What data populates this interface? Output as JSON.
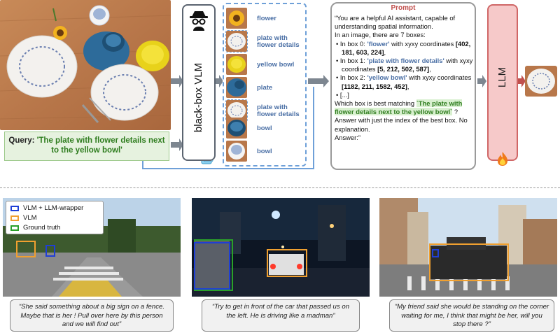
{
  "query": {
    "label": "Query: ",
    "text": "'The plate with flower details next to the yellow bowl'"
  },
  "vlm": {
    "label": "black-box VLM"
  },
  "crops": [
    {
      "label": "flower",
      "thumb": "flower"
    },
    {
      "label": "plate with flower details",
      "thumb": "plate"
    },
    {
      "label": "yellow bowl",
      "thumb": "yellow"
    },
    {
      "label": "plate",
      "thumb": "blueplate"
    },
    {
      "label": "plate with flower details",
      "thumb": "plate2"
    },
    {
      "label": "bowl",
      "thumb": "bowl"
    },
    {
      "label": "bowl",
      "thumb": "mug"
    }
  ],
  "prompt": {
    "title": "Prompt",
    "intro": "“You are a helpful AI assistant, capable of understanding spatial information.",
    "count_line": "In an image, there are 7 boxes:",
    "boxes": [
      {
        "prefix": "In box 0: ",
        "label": "'flower'",
        "mid": " with xyxy coordinates ",
        "coords": "[402, 181, 603, 224]",
        "suffix": ","
      },
      {
        "prefix": "In box 1: ",
        "label": "'plate with flower details'",
        "mid": " with xyxy coordinates ",
        "coords": "[5, 212, 502, 587]",
        "suffix": ","
      },
      {
        "prefix": "In box 2: ",
        "label": "'yellow bowl'",
        "mid": " with xyxy coordinates ",
        "coords": "[1182, 211, 1582, 452]",
        "suffix": ","
      }
    ],
    "ellipsis": "[...]",
    "question_pre": "Which box is best matching ",
    "question_query": "`The plate with flower details next to the yellow bowl`",
    "question_post": " ? Answer with just the index of the best box. No explanation.",
    "answer": "Answer:”"
  },
  "llm": {
    "label": "LLM"
  },
  "legend": [
    {
      "label": "VLM + LLM-wrapper",
      "color": "#1f3fd6"
    },
    {
      "label": "VLM",
      "color": "#f0a030"
    },
    {
      "label": "Ground truth",
      "color": "#2aa02a"
    }
  ],
  "examples": [
    {
      "caption": "“She said something about a big sign on a fence. Maybe that is her ! Pull over here by this person and we will find out”"
    },
    {
      "caption": "“Try to get in front of the car that passed us on the left. He is driving like a madman”"
    },
    {
      "caption": "“My friend said she would be standing on the corner waiting for me, I think that might be her, will you stop there ?”"
    }
  ]
}
